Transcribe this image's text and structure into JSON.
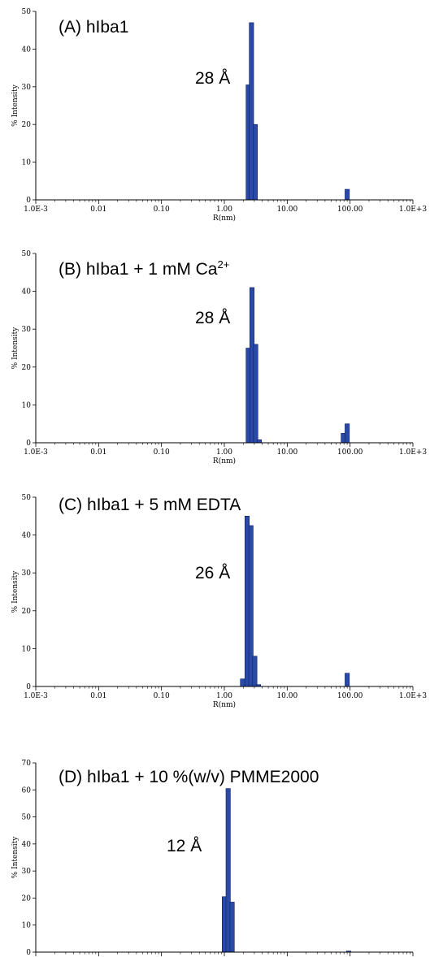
{
  "chart_data": [
    {
      "type": "bar",
      "title": "(A)  hIba1",
      "annotation": "28 Å",
      "xlabel": "R(nm)",
      "ylabel": "% Intensity",
      "x_scale": "log",
      "xlim": [
        0.001,
        1000
      ],
      "ylim": [
        0,
        50
      ],
      "x_tick_labels": [
        "1.0E-3",
        "0.01",
        "0.10",
        "1.00",
        "10.00",
        "100.00",
        "1.0E+3"
      ],
      "y_ticks": [
        0,
        10,
        20,
        30,
        40,
        50
      ],
      "bars": [
        {
          "x": 2.4,
          "value": 30.5
        },
        {
          "x": 2.7,
          "value": 47.0
        },
        {
          "x": 3.1,
          "value": 20.0
        },
        {
          "x": 90.0,
          "value": 2.8
        }
      ],
      "bar_color": "#2b4aa8"
    },
    {
      "type": "bar",
      "title": "(B) hIba1 + 1 mM Ca",
      "title_sup": "2+",
      "annotation": "28 Å",
      "xlabel": "R(nm)",
      "ylabel": "% Intensity",
      "x_scale": "log",
      "xlim": [
        0.001,
        1000
      ],
      "ylim": [
        0,
        50
      ],
      "x_tick_labels": [
        "1.0E-3",
        "0.01",
        "0.10",
        "1.00",
        "10.00",
        "100.00",
        "1.0E+3"
      ],
      "y_ticks": [
        0,
        10,
        20,
        30,
        40,
        50
      ],
      "bars": [
        {
          "x": 2.4,
          "value": 25.0
        },
        {
          "x": 2.75,
          "value": 41.0
        },
        {
          "x": 3.15,
          "value": 26.0
        },
        {
          "x": 3.6,
          "value": 0.8
        },
        {
          "x": 78.0,
          "value": 2.5
        },
        {
          "x": 90.0,
          "value": 5.0
        }
      ],
      "bar_color": "#2b4aa8"
    },
    {
      "type": "bar",
      "title": "(C) hIba1 + 5 mM EDTA",
      "annotation": "26 Å",
      "xlabel": "R(nm)",
      "ylabel": "% Intensity",
      "x_scale": "log",
      "xlim": [
        0.001,
        1000
      ],
      "ylim": [
        0,
        50
      ],
      "x_tick_labels": [
        "1.0E-3",
        "0.01",
        "0.10",
        "1.00",
        "10.00",
        "100.00",
        "1.0E+3"
      ],
      "y_ticks": [
        0,
        10,
        20,
        30,
        40,
        50
      ],
      "bars": [
        {
          "x": 1.95,
          "value": 2.0
        },
        {
          "x": 2.3,
          "value": 45.0
        },
        {
          "x": 2.65,
          "value": 42.5
        },
        {
          "x": 3.05,
          "value": 8.0
        },
        {
          "x": 3.5,
          "value": 0.5
        },
        {
          "x": 90.0,
          "value": 3.5
        }
      ],
      "bar_color": "#2b4aa8"
    },
    {
      "type": "bar",
      "title": "(D) hIba1 + 10 %(w/v) PMME2000",
      "annotation": "12 Å",
      "xlabel": "R(nm)",
      "ylabel": "% Intensity",
      "x_scale": "log",
      "xlim": [
        0.001,
        1000
      ],
      "ylim": [
        0,
        70
      ],
      "x_tick_labels": [
        "1.0E-3",
        "0.01",
        "0.10",
        "1.00",
        "10.00",
        "100.00",
        "1.0E+3"
      ],
      "y_ticks": [
        0,
        10,
        20,
        30,
        40,
        50,
        60,
        70
      ],
      "bars": [
        {
          "x": 1.0,
          "value": 20.5
        },
        {
          "x": 1.15,
          "value": 60.5
        },
        {
          "x": 1.33,
          "value": 18.5
        },
        {
          "x": 95.0,
          "value": 0.4
        }
      ],
      "bar_color": "#2b4aa8"
    }
  ]
}
